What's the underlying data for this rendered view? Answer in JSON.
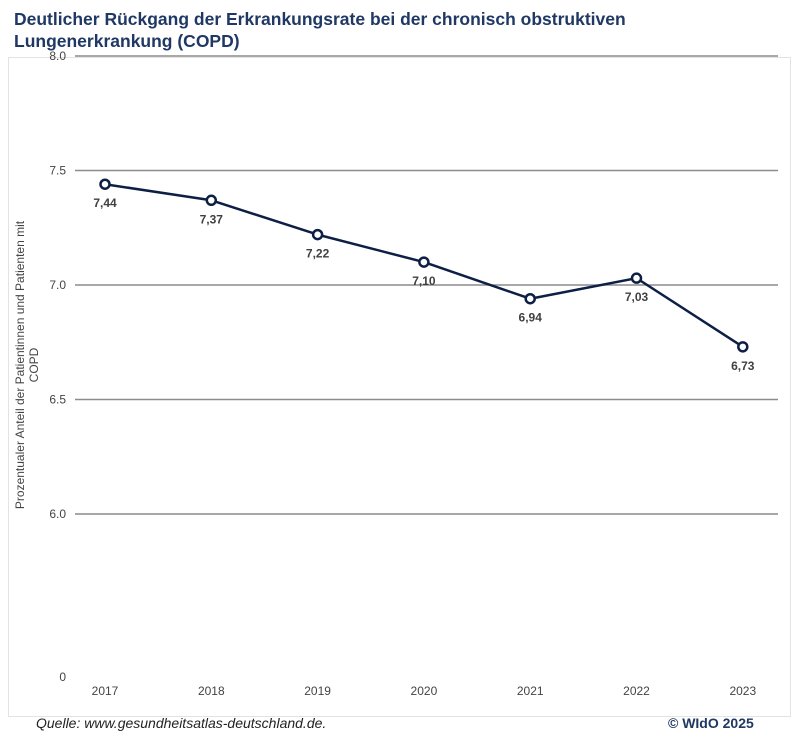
{
  "chart_data": {
    "type": "line",
    "title": "Deutlicher Rückgang der Erkrankungsrate bei der chronisch obstruktiven Lungenerkrankung (COPD)",
    "ylabel_lines": [
      "Prozentualer Anteil der Patientinnen und Patienten mit",
      "COPD"
    ],
    "x": [
      "2017",
      "2018",
      "2019",
      "2020",
      "2021",
      "2022",
      "2023"
    ],
    "series": [
      {
        "values": [
          7.44,
          7.37,
          7.22,
          7.1,
          6.94,
          7.03,
          6.73
        ],
        "labels": [
          "7,44",
          "7,37",
          "7,22",
          "7,10",
          "6,94",
          "7,03",
          "6,73"
        ]
      }
    ],
    "yticks": [
      {
        "value": 8.0,
        "label": "8.0"
      },
      {
        "value": 7.5,
        "label": "7.5"
      },
      {
        "value": 7.0,
        "label": "7.0"
      },
      {
        "value": 6.5,
        "label": "6.5"
      },
      {
        "value": 6.0,
        "label": "6.0"
      }
    ],
    "ylim": [
      6.0,
      8.0
    ],
    "axis_break_label": "0",
    "grid": true,
    "line_color": "#0d1f44",
    "grid_color": "#8c8c8c"
  },
  "footer": {
    "source": "Quelle: www.gesundheitsatlas-deutschland.de.",
    "copyright": "© WIdO 2025"
  }
}
